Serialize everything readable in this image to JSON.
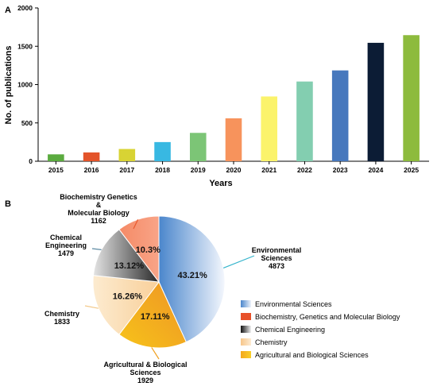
{
  "chart_data": [
    {
      "type": "bar",
      "panel_label": "A",
      "categories": [
        "2015",
        "2016",
        "2017",
        "2018",
        "2019",
        "2020",
        "2021",
        "2022",
        "2023",
        "2024",
        "2025"
      ],
      "values": [
        90,
        115,
        160,
        250,
        370,
        560,
        845,
        1040,
        1185,
        1545,
        1645
      ],
      "colors": [
        "#5bab3f",
        "#e3542a",
        "#d8d334",
        "#38b8e2",
        "#7cc576",
        "#f7935c",
        "#fbf36b",
        "#83ceb0",
        "#4778bd",
        "#0c1c35",
        "#8dbb3d"
      ],
      "ylabel": "No. of publications",
      "xlabel": "Years",
      "ylim": [
        0,
        2000
      ],
      "yticks": [
        "0",
        "500",
        "1000",
        "1500",
        "2000"
      ],
      "grid": false
    },
    {
      "type": "pie",
      "panel_label": "B",
      "slices": [
        {
          "label": "Environmental Sciences",
          "callout": [
            "Environmental",
            "Sciences",
            "4873"
          ],
          "value": 4873,
          "percent": "43.21%",
          "color": "#4b86cc"
        },
        {
          "label": "Agricultural and Biological Sciences",
          "callout": [
            "Agricultural & Biological",
            "Sciences",
            "1929"
          ],
          "value": 1929,
          "percent": "17.11%",
          "color": "#f2a51c"
        },
        {
          "label": "Chemistry",
          "callout": [
            "Chemistry",
            "1833"
          ],
          "value": 1833,
          "percent": "16.26%",
          "color": "#fbd9a5"
        },
        {
          "label": "Chemical Engineering",
          "callout": [
            "Chemical",
            "Engineering",
            "1479"
          ],
          "value": 1479,
          "percent": "13.12%",
          "color": "#6c6c6c"
        },
        {
          "label": "Biochemistry, Genetics and Molecular Biology",
          "callout": [
            "Biochemistry Genetics",
            "&",
            "Molecular Biology",
            "1162"
          ],
          "value": 1162,
          "percent": "10.3%",
          "color": "#f58f6e"
        }
      ],
      "legend": {
        "placement": "right",
        "items": [
          {
            "label": "Environmental Sciences",
            "color": "#4b86cc"
          },
          {
            "label": "Biochemistry, Genetics and Molecular Biology",
            "color": "#e8512a"
          },
          {
            "label": "Chemical Engineering",
            "color": "#555555"
          },
          {
            "label": "Chemistry",
            "color": "#f9c98f"
          },
          {
            "label": "Agricultural and Biological Sciences",
            "color": "#f5b11a"
          }
        ]
      }
    }
  ]
}
